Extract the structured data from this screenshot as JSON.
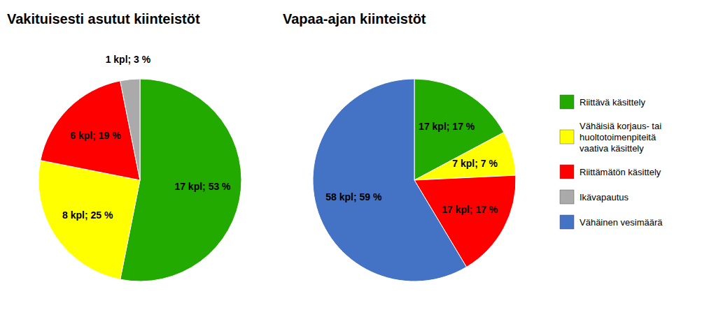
{
  "chart_data": [
    {
      "type": "pie",
      "title": "Vakituisesti asutut kiinteistöt",
      "categories": [
        "Riittävä käsittely",
        "Vähäisiä korjaus- tai\nhuoltotoimenpiteitä\nvaativa käsittely",
        "Riittämätön käsittely",
        "Ikävapautus"
      ],
      "values": [
        17,
        8,
        6,
        1
      ],
      "value_labels": [
        "17 kpl; 53 %",
        "8 kpl; 25 %",
        "6 kpl; 19 %",
        "1 kpl; 3 %"
      ],
      "colors": [
        "#22AA00",
        "#FFFF00",
        "#FF0000",
        "#AAAAAA"
      ],
      "data_labels": true,
      "legend": "right"
    },
    {
      "type": "pie",
      "title": "Vapaa-ajan kiinteistöt",
      "categories": [
        "Riittävä käsittely",
        "Vähäisiä korjaus- tai\nhuoltotoimenpiteitä\nvaativa käsittely",
        "Riittämätön käsittely",
        "Vähäinen vesimäärä"
      ],
      "values": [
        17,
        7,
        17,
        58
      ],
      "value_labels": [
        "17 kpl; 17 %",
        "7 kpl; 7 %",
        "17 kpl; 17 %",
        "58 kpl; 59 %"
      ],
      "colors": [
        "#22AA00",
        "#FFFF00",
        "#FF0000",
        "#4472C4"
      ],
      "data_labels": true,
      "legend": "right"
    }
  ]
}
